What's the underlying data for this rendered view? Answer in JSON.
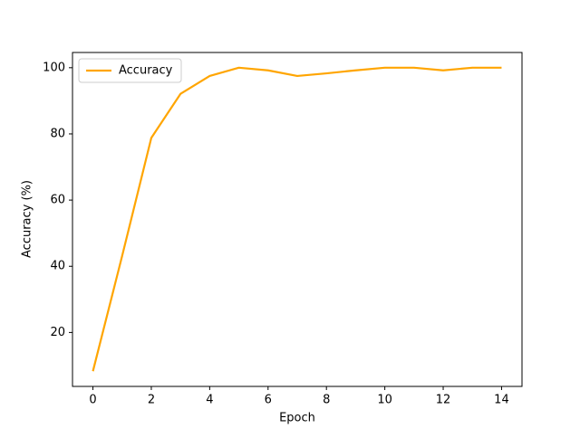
{
  "chart_data": {
    "type": "line",
    "x": [
      0,
      1,
      2,
      3,
      4,
      5,
      6,
      7,
      8,
      9,
      10,
      11,
      12,
      13,
      14
    ],
    "series": [
      {
        "name": "Accuracy",
        "color": "#ffa500",
        "values": [
          8.3,
          43.1,
          78.8,
          92.1,
          97.5,
          100,
          99.2,
          97.5,
          98.3,
          99.2,
          100,
          100,
          99.2,
          100,
          100
        ]
      }
    ],
    "xlabel": "Epoch",
    "ylabel": "Accuracy (%)",
    "xlim": [
      -0.7,
      14.7
    ],
    "xticks": [
      0,
      2,
      4,
      6,
      8,
      10,
      12,
      14
    ],
    "ylim": [
      3.7,
      104.6
    ],
    "yticks": [
      20,
      40,
      60,
      80,
      100
    ],
    "legend": "upper left",
    "grid": false
  }
}
